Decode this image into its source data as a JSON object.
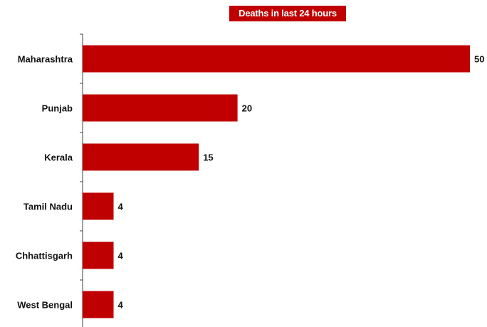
{
  "chart_data": {
    "type": "bar",
    "orientation": "horizontal",
    "title": "Deaths in last 24 hours",
    "categories": [
      "Maharashtra",
      "Punjab",
      "Kerala",
      "Tamil Nadu",
      "Chhattisgarh",
      "West Bengal"
    ],
    "values": [
      50,
      20,
      15,
      4,
      4,
      4
    ],
    "xlim": [
      0,
      50
    ],
    "grid": false,
    "legend": "none",
    "bar_color": "#c00000",
    "title_bg_color": "#c00000"
  }
}
